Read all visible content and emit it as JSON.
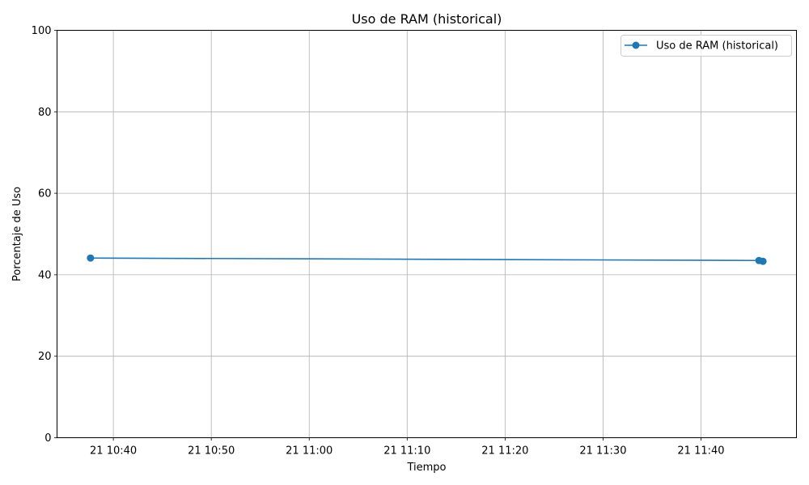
{
  "chart_data": {
    "type": "line",
    "title": "Uso de RAM (historical)",
    "xlabel": "Tiempo",
    "ylabel": "Porcentaje de Uso",
    "ylim": [
      0,
      100
    ],
    "xlim": [
      "10:34:15",
      "11:49:45"
    ],
    "grid": true,
    "legend_position": "top-right",
    "y_ticks": [
      0,
      20,
      40,
      60,
      80,
      100
    ],
    "x_ticks": [
      {
        "time": "10:40:00",
        "label": "21 10:40"
      },
      {
        "time": "10:50:00",
        "label": "21 10:50"
      },
      {
        "time": "11:00:00",
        "label": "21 11:00"
      },
      {
        "time": "11:10:00",
        "label": "21 11:10"
      },
      {
        "time": "11:20:00",
        "label": "21 11:20"
      },
      {
        "time": "11:30:00",
        "label": "21 11:30"
      },
      {
        "time": "11:40:00",
        "label": "21 11:40"
      }
    ],
    "series": [
      {
        "name": "Uso de RAM (historical)",
        "color": "#1f77b4",
        "marker": "circle",
        "points": [
          {
            "x": "10:37:40",
            "y": 44.1
          },
          {
            "x": "11:45:55",
            "y": 43.5
          },
          {
            "x": "11:46:20",
            "y": 43.3
          }
        ]
      }
    ]
  }
}
